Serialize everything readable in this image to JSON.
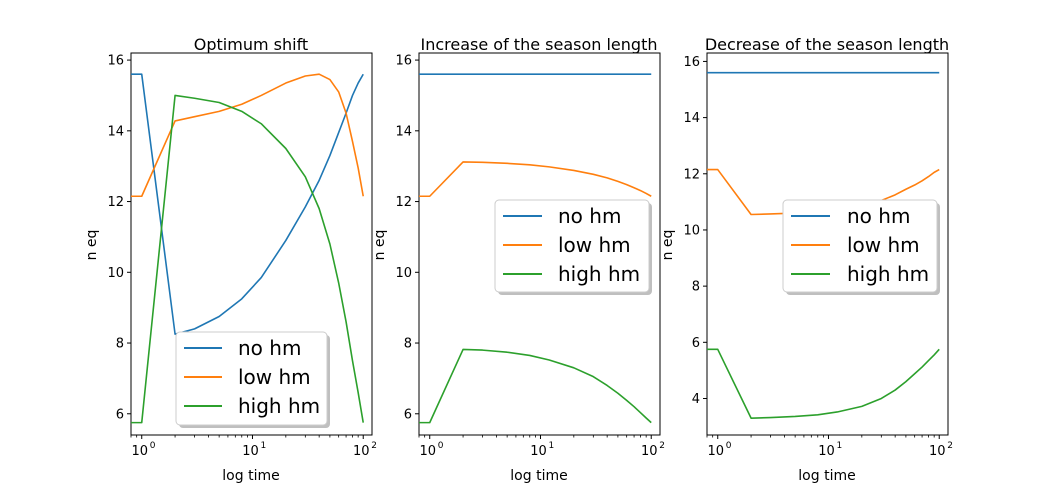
{
  "figure": {
    "background": "#ffffff",
    "colors": {
      "no hm": "#1f77b4",
      "low hm": "#ff7f0e",
      "high hm": "#2ca02c"
    }
  },
  "chart_data": [
    {
      "type": "line",
      "title": "Optimum shift",
      "xlabel": "log time",
      "ylabel": "n eq",
      "xscale": "log",
      "xlim": [
        0.8,
        120
      ],
      "ylim": [
        5.4,
        16.2
      ],
      "xticks": [
        1,
        10,
        100
      ],
      "xtick_labels": [
        {
          "base": "10",
          "exp": "0"
        },
        {
          "base": "10",
          "exp": "1"
        },
        {
          "base": "10",
          "exp": "2"
        }
      ],
      "yticks": [
        6,
        8,
        10,
        12,
        14,
        16
      ],
      "legend": {
        "position": "lower-right",
        "entries": [
          "no hm",
          "low hm",
          "high hm"
        ]
      },
      "x": [
        0.8,
        1,
        2,
        3,
        5,
        8,
        12,
        20,
        30,
        40,
        50,
        60,
        70,
        80,
        90,
        100
      ],
      "series": [
        {
          "name": "no hm",
          "color": "#1f77b4",
          "values": [
            15.6,
            15.6,
            8.25,
            8.4,
            8.75,
            9.25,
            9.85,
            10.9,
            11.85,
            12.6,
            13.3,
            13.95,
            14.5,
            15.0,
            15.35,
            15.6
          ]
        },
        {
          "name": "low hm",
          "color": "#ff7f0e",
          "values": [
            12.15,
            12.15,
            14.28,
            14.4,
            14.55,
            14.75,
            15.0,
            15.35,
            15.55,
            15.6,
            15.45,
            15.1,
            14.5,
            13.7,
            12.95,
            12.15
          ]
        },
        {
          "name": "high hm",
          "color": "#2ca02c",
          "values": [
            5.75,
            5.75,
            15.0,
            14.92,
            14.8,
            14.55,
            14.2,
            13.5,
            12.7,
            11.8,
            10.8,
            9.7,
            8.6,
            7.5,
            6.6,
            5.75
          ]
        }
      ]
    },
    {
      "type": "line",
      "title": "Increase of the season length",
      "xlabel": "log time",
      "ylabel": "n eq",
      "xscale": "log",
      "xlim": [
        0.8,
        120
      ],
      "ylim": [
        5.4,
        16.2
      ],
      "xticks": [
        1,
        10,
        100
      ],
      "xtick_labels": [
        {
          "base": "10",
          "exp": "0"
        },
        {
          "base": "10",
          "exp": "1"
        },
        {
          "base": "10",
          "exp": "2"
        }
      ],
      "yticks": [
        6,
        8,
        10,
        12,
        14,
        16
      ],
      "legend": {
        "position": "center-right",
        "entries": [
          "no hm",
          "low hm",
          "high hm"
        ]
      },
      "x": [
        0.8,
        1,
        2,
        3,
        5,
        8,
        12,
        20,
        30,
        40,
        50,
        60,
        70,
        80,
        90,
        100
      ],
      "series": [
        {
          "name": "no hm",
          "color": "#1f77b4",
          "values": [
            15.6,
            15.6,
            15.6,
            15.6,
            15.6,
            15.6,
            15.6,
            15.6,
            15.6,
            15.6,
            15.6,
            15.6,
            15.6,
            15.6,
            15.6,
            15.6
          ]
        },
        {
          "name": "low hm",
          "color": "#ff7f0e",
          "values": [
            12.15,
            12.15,
            13.12,
            13.11,
            13.08,
            13.04,
            12.98,
            12.88,
            12.77,
            12.67,
            12.57,
            12.48,
            12.39,
            12.31,
            12.23,
            12.15
          ]
        },
        {
          "name": "high hm",
          "color": "#2ca02c",
          "values": [
            5.75,
            5.75,
            7.82,
            7.8,
            7.74,
            7.65,
            7.52,
            7.3,
            7.05,
            6.8,
            6.58,
            6.38,
            6.2,
            6.03,
            5.88,
            5.75
          ]
        }
      ]
    },
    {
      "type": "line",
      "title": "Decrease of the season length",
      "xlabel": "log time",
      "ylabel": "n eq",
      "xscale": "log",
      "xlim": [
        0.8,
        120
      ],
      "ylim": [
        2.7,
        16.3
      ],
      "xticks": [
        1,
        10,
        100
      ],
      "xtick_labels": [
        {
          "base": "10",
          "exp": "0"
        },
        {
          "base": "10",
          "exp": "1"
        },
        {
          "base": "10",
          "exp": "2"
        }
      ],
      "yticks": [
        4,
        6,
        8,
        10,
        12,
        14,
        16
      ],
      "legend": {
        "position": "center-right",
        "entries": [
          "no hm",
          "low hm",
          "high hm"
        ]
      },
      "x": [
        0.8,
        1,
        2,
        3,
        5,
        8,
        12,
        20,
        30,
        40,
        50,
        60,
        70,
        80,
        90,
        100
      ],
      "series": [
        {
          "name": "no hm",
          "color": "#1f77b4",
          "values": [
            15.6,
            15.6,
            15.6,
            15.6,
            15.6,
            15.6,
            15.6,
            15.6,
            15.6,
            15.6,
            15.6,
            15.6,
            15.6,
            15.6,
            15.6,
            15.6
          ]
        },
        {
          "name": "low hm",
          "color": "#ff7f0e",
          "values": [
            12.15,
            12.15,
            10.55,
            10.57,
            10.6,
            10.65,
            10.72,
            10.85,
            11.05,
            11.25,
            11.45,
            11.6,
            11.75,
            11.9,
            12.05,
            12.15
          ]
        },
        {
          "name": "high hm",
          "color": "#2ca02c",
          "values": [
            5.75,
            5.75,
            3.3,
            3.32,
            3.36,
            3.42,
            3.52,
            3.72,
            4.0,
            4.3,
            4.6,
            4.88,
            5.12,
            5.35,
            5.55,
            5.75
          ]
        }
      ]
    }
  ]
}
